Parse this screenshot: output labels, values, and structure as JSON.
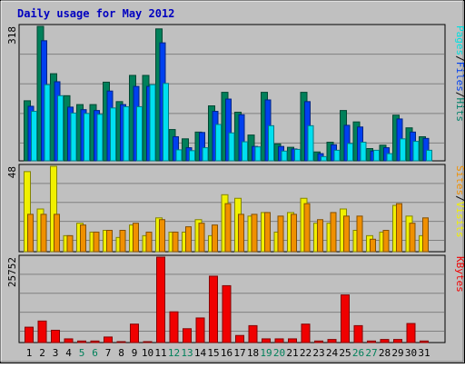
{
  "chart_data": [
    {
      "panel": "top",
      "type": "bar",
      "title": "Daily usage for May 2012",
      "categories": [
        "1",
        "2",
        "3",
        "4",
        "5",
        "6",
        "7",
        "8",
        "9",
        "10",
        "11",
        "12",
        "13",
        "14",
        "15",
        "16",
        "17",
        "18",
        "19",
        "20",
        "21",
        "22",
        "23",
        "24",
        "25",
        "26",
        "27",
        "28",
        "29",
        "30",
        "31"
      ],
      "ymax_label": "318",
      "ylim": [
        0,
        318
      ],
      "grid": true,
      "legend": [
        {
          "label": "Pages",
          "color": "#00e0e0"
        },
        {
          "label": "/",
          "color": "#000000"
        },
        {
          "label": "Files",
          "color": "#0040f0"
        },
        {
          "label": "/",
          "color": "#000000"
        },
        {
          "label": "Hits",
          "color": "#00806a"
        }
      ],
      "series": [
        {
          "name": "Hits",
          "color": "#00805a",
          "values": [
            142,
            318,
            206,
            154,
            133,
            133,
            186,
            140,
            202,
            202,
            312,
            74,
            52,
            68,
            130,
            162,
            115,
            61,
            162,
            40,
            32,
            162,
            21,
            44,
            119,
            92,
            29,
            37,
            108,
            78,
            57
          ]
        },
        {
          "name": "Files",
          "color": "#0040f0",
          "values": [
            129,
            284,
            187,
            127,
            121,
            119,
            165,
            133,
            176,
            176,
            279,
            57,
            31,
            67,
            117,
            146,
            109,
            34,
            144,
            34,
            28,
            140,
            17,
            38,
            84,
            80,
            23,
            31,
            99,
            68,
            53
          ]
        },
        {
          "name": "Pages",
          "color": "#00e0f0",
          "values": [
            117,
            180,
            154,
            113,
            112,
            110,
            125,
            128,
            128,
            180,
            183,
            26,
            24,
            31,
            86,
            66,
            45,
            33,
            83,
            23,
            27,
            83,
            10,
            25,
            41,
            44,
            25,
            17,
            52,
            46,
            25
          ]
        }
      ]
    },
    {
      "panel": "middle",
      "type": "bar",
      "categories": [
        "1",
        "2",
        "3",
        "4",
        "5",
        "6",
        "7",
        "8",
        "9",
        "10",
        "11",
        "12",
        "13",
        "14",
        "15",
        "16",
        "17",
        "18",
        "19",
        "20",
        "21",
        "22",
        "23",
        "24",
        "25",
        "26",
        "27",
        "28",
        "29",
        "30",
        "31"
      ],
      "ymax_label": "48",
      "ylim": [
        0,
        48
      ],
      "grid": true,
      "legend": [
        {
          "label": "Sites",
          "color": "#f09000"
        },
        {
          "label": "/",
          "color": "#000000"
        },
        {
          "label": "Visits",
          "color": "#f0f000"
        }
      ],
      "series": [
        {
          "name": "Visits",
          "color": "#f0f000",
          "values": [
            45,
            24,
            48,
            9,
            16,
            11,
            12,
            8,
            15,
            9,
            19,
            11,
            11,
            18,
            9,
            32,
            30,
            20,
            22,
            11,
            22,
            30,
            16,
            16,
            24,
            12,
            9,
            11,
            26,
            20,
            9
          ]
        },
        {
          "name": "Sites",
          "color": "#f09000",
          "values": [
            21,
            21,
            21,
            9,
            15,
            11,
            12,
            12,
            16,
            11,
            18,
            11,
            14,
            16,
            15,
            27,
            21,
            21,
            22,
            20,
            21,
            27,
            18,
            22,
            20,
            20,
            7,
            12,
            27,
            16,
            19
          ]
        }
      ]
    },
    {
      "panel": "bottom",
      "type": "bar",
      "categories": [
        "1",
        "2",
        "3",
        "4",
        "5",
        "6",
        "7",
        "8",
        "9",
        "10",
        "11",
        "12",
        "13",
        "14",
        "15",
        "16",
        "17",
        "18",
        "19",
        "20",
        "21",
        "22",
        "23",
        "24",
        "25",
        "26",
        "27",
        "28",
        "29",
        "30",
        "31"
      ],
      "ymax_label": "25752",
      "ylim": [
        0,
        25752
      ],
      "grid": true,
      "legend": [
        {
          "label": "KBytes",
          "color": "#f00000"
        }
      ],
      "series": [
        {
          "name": "KBytes",
          "color": "#f00000",
          "values": [
            4634,
            6487,
            3707,
            1112,
            463,
            463,
            1668,
            185,
            5560,
            185,
            25752,
            9267,
            4170,
            7414,
            20010,
            17143,
            2131,
            5097,
            1112,
            1112,
            1112,
            5560,
            463,
            926,
            14361,
            5097,
            463,
            926,
            926,
            5745,
            463
          ]
        }
      ]
    }
  ],
  "x_axis": {
    "labels": [
      "1",
      "2",
      "3",
      "4",
      "5",
      "6",
      "7",
      "8",
      "9",
      "10",
      "11",
      "12",
      "13",
      "14",
      "15",
      "16",
      "17",
      "18",
      "19",
      "20",
      "21",
      "22",
      "23",
      "24",
      "25",
      "26",
      "27",
      "28",
      "29",
      "30",
      "31"
    ],
    "weekend_color": "#00805a",
    "weekday_color": "#000000",
    "weekend_days": [
      "5",
      "6",
      "12",
      "13",
      "19",
      "20",
      "26",
      "27"
    ]
  }
}
